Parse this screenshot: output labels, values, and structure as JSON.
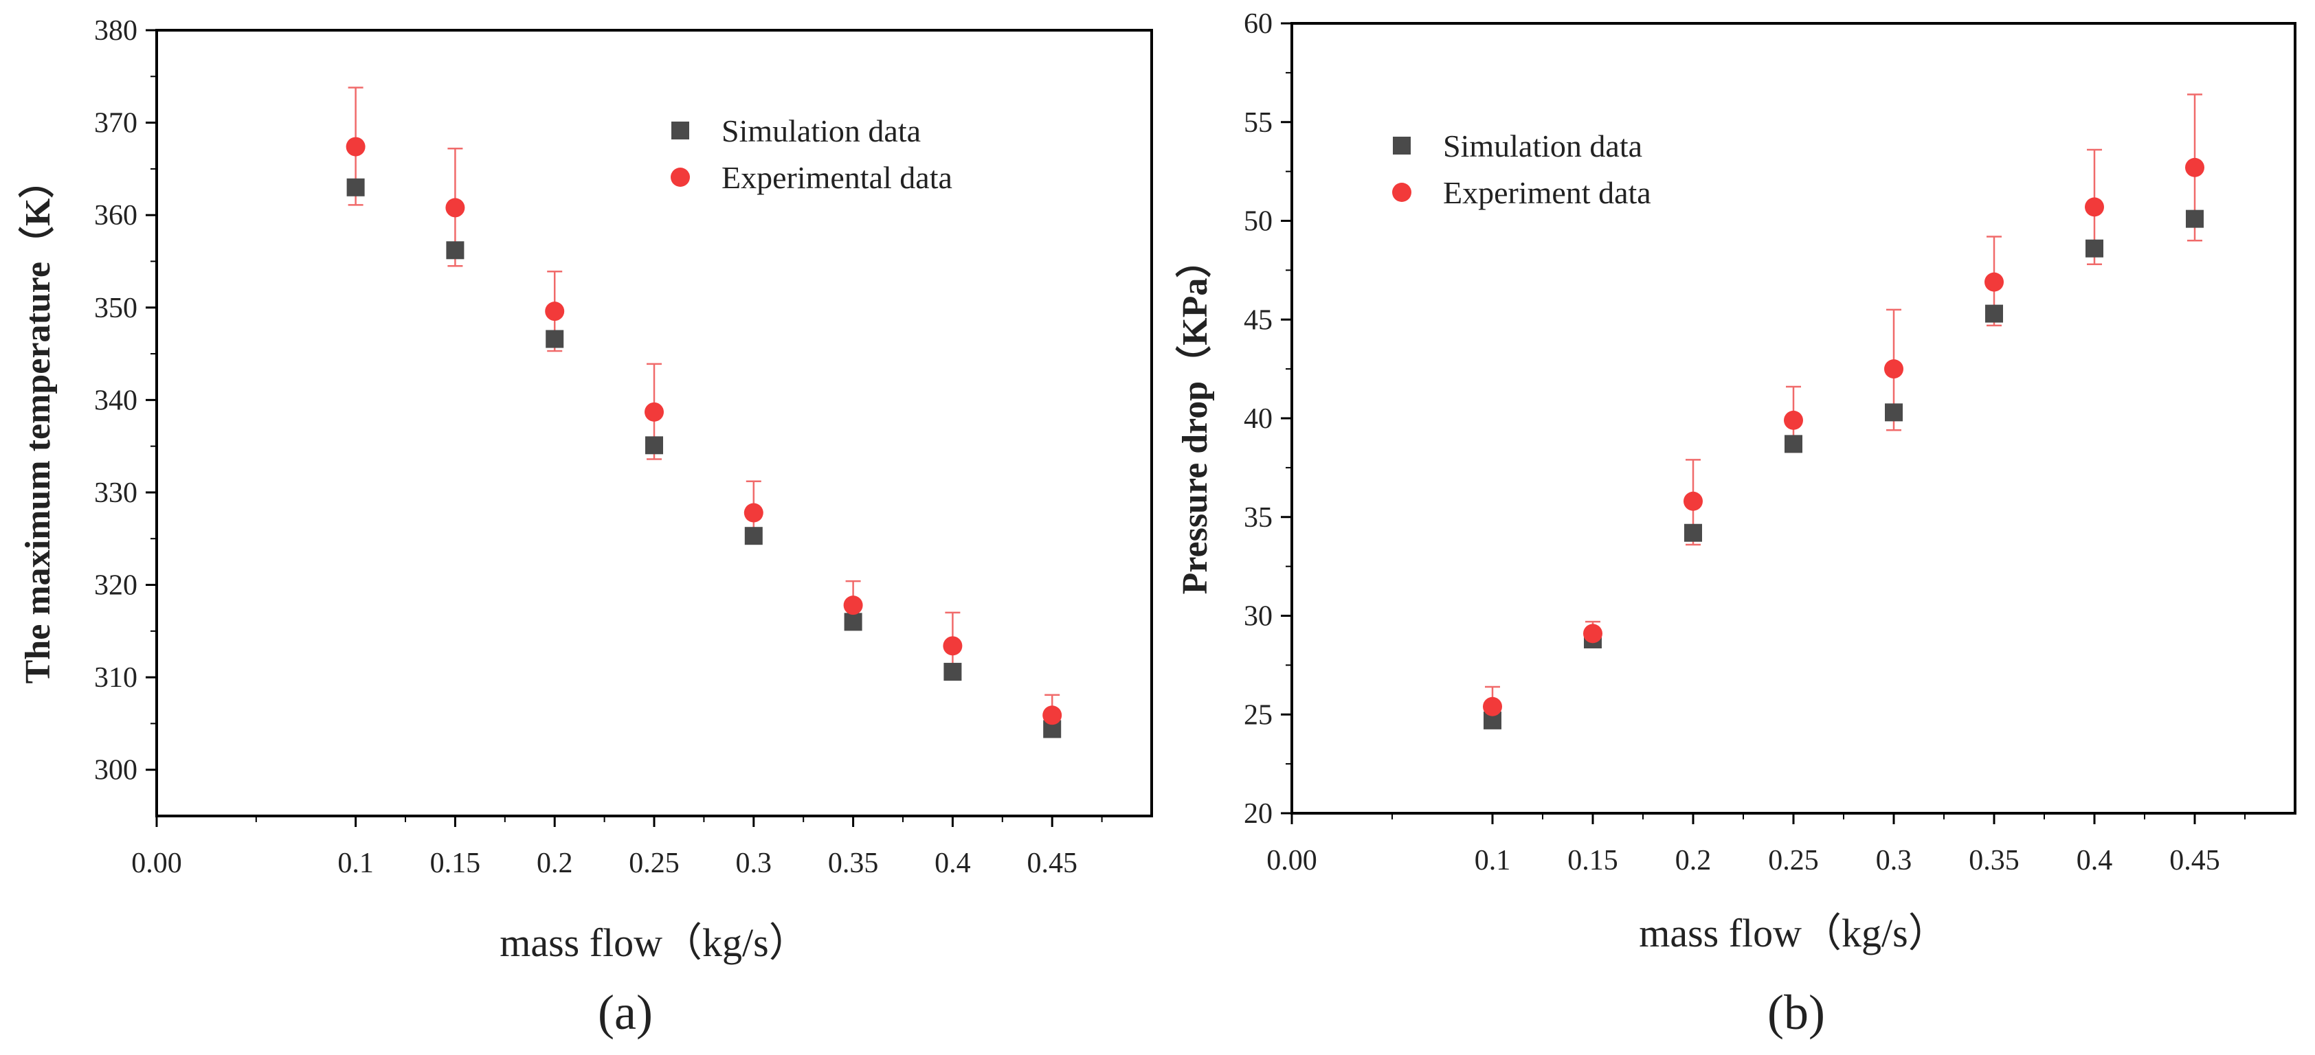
{
  "figure": {
    "panels": [
      {
        "id": "a",
        "label": "(a)"
      },
      {
        "id": "b",
        "label": "(b)"
      }
    ]
  },
  "chart_data": [
    {
      "type": "scatter",
      "panel_label": "(a)",
      "title": "",
      "xlabel": "mass flow（kg/s）",
      "ylabel": "The maximum temperature（K）",
      "xlim": [
        0.0,
        0.5
      ],
      "ylim": [
        295,
        380
      ],
      "xticks": [
        0.0,
        0.1,
        0.15,
        0.2,
        0.25,
        0.3,
        0.35,
        0.4,
        0.45
      ],
      "xtick_labels": [
        "0.00",
        "0.1",
        "0.15",
        "0.2",
        "0.25",
        "0.3",
        "0.35",
        "0.4",
        "0.45"
      ],
      "yticks": [
        300,
        310,
        320,
        330,
        340,
        350,
        360,
        370,
        380
      ],
      "ytick_labels": [
        "300",
        "310",
        "320",
        "330",
        "340",
        "350",
        "360",
        "370",
        "380"
      ],
      "legend_position": "top-right",
      "series": [
        {
          "name": "Simulation data",
          "marker": "square",
          "color": "#4a4a4a",
          "x": [
            0.1,
            0.15,
            0.2,
            0.25,
            0.3,
            0.35,
            0.4,
            0.45
          ],
          "y": [
            363.0,
            356.2,
            346.6,
            335.1,
            325.3,
            316.0,
            310.6,
            304.4
          ]
        },
        {
          "name": "Experimental data",
          "marker": "circle",
          "color": "#f23a3a",
          "x": [
            0.1,
            0.15,
            0.2,
            0.25,
            0.3,
            0.35,
            0.4,
            0.45
          ],
          "y": [
            367.4,
            360.8,
            349.6,
            338.7,
            327.8,
            317.8,
            313.4,
            305.9
          ],
          "error_upper": [
            373.8,
            367.2,
            353.9,
            343.9,
            331.2,
            320.4,
            317.0,
            308.1
          ],
          "error_lower": [
            361.1,
            354.5,
            345.3,
            333.6,
            324.9,
            315.2,
            309.8,
            303.7
          ]
        }
      ]
    },
    {
      "type": "scatter",
      "panel_label": "(b)",
      "title": "",
      "xlabel": "mass flow（kg/s）",
      "ylabel": "Pressure drop（KPa）",
      "xlim": [
        0.0,
        0.5
      ],
      "ylim": [
        20,
        60
      ],
      "xticks": [
        0.0,
        0.1,
        0.15,
        0.2,
        0.25,
        0.3,
        0.35,
        0.4,
        0.45
      ],
      "xtick_labels": [
        "0.00",
        "0.1",
        "0.15",
        "0.2",
        "0.25",
        "0.3",
        "0.35",
        "0.4",
        "0.45"
      ],
      "yticks": [
        20,
        25,
        30,
        35,
        40,
        45,
        50,
        55,
        60
      ],
      "ytick_labels": [
        "20",
        "25",
        "30",
        "35",
        "40",
        "45",
        "50",
        "55",
        "60"
      ],
      "legend_position": "top-left",
      "series": [
        {
          "name": "Simulation data",
          "marker": "square",
          "color": "#4a4a4a",
          "x": [
            0.1,
            0.15,
            0.2,
            0.25,
            0.3,
            0.35,
            0.4,
            0.45
          ],
          "y": [
            24.7,
            28.8,
            34.2,
            38.7,
            40.3,
            45.3,
            48.6,
            50.1
          ]
        },
        {
          "name": "Experiment data",
          "marker": "circle",
          "color": "#f23a3a",
          "x": [
            0.1,
            0.15,
            0.2,
            0.25,
            0.3,
            0.35,
            0.4,
            0.45
          ],
          "y": [
            25.4,
            29.1,
            35.8,
            39.9,
            42.5,
            46.9,
            50.7,
            52.7
          ],
          "error_upper": [
            26.4,
            29.7,
            37.9,
            41.6,
            45.5,
            49.2,
            53.6,
            56.4
          ],
          "error_lower": [
            24.4,
            28.5,
            33.6,
            38.3,
            39.4,
            44.7,
            47.8,
            49.0
          ]
        }
      ]
    }
  ]
}
